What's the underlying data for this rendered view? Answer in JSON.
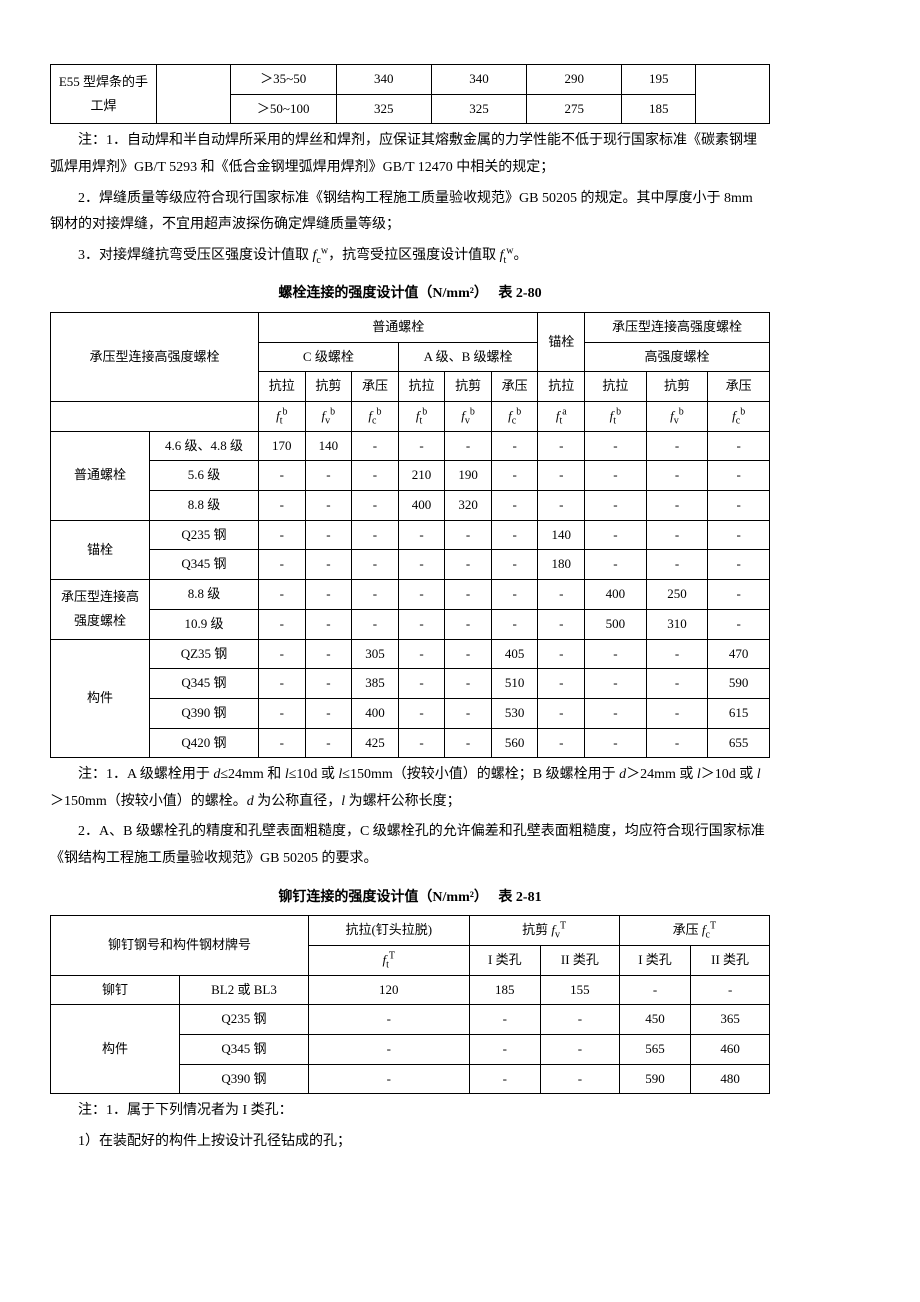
{
  "table1": {
    "left_label": "E55 型焊条的手工焊",
    "rows": [
      {
        "range": "＞35~50",
        "c1": "340",
        "c2": "340",
        "c3": "290",
        "c4": "195"
      },
      {
        "range": "＞50~100",
        "c1": "325",
        "c2": "325",
        "c3": "275",
        "c4": "185"
      }
    ]
  },
  "notes1": [
    "注：1．自动焊和半自动焊所采用的焊丝和焊剂，应保证其熔敷金属的力学性能不低于现行国家标准《碳素钢埋弧焊用焊剂》GB/T 5293 和《低合金钢埋弧焊用焊剂》GB/T 12470 中相关的规定；",
    "2．焊缝质量等级应符合现行国家标准《钢结构工程施工质量验收规范》GB 50205 的规定。其中厚度小于 8mm 钢材的对接焊缝，不宜用超声波探伤确定焊缝质量等级；",
    "3．对接焊缝抗弯受压区强度设计值取 fcw，抗弯受拉区强度设计值取 ftw。"
  ],
  "title2": "螺栓连接的强度设计值（N/mm²）　 表 2-80",
  "table2": {
    "header": {
      "rowspan_label": "承压型连接高强度螺栓",
      "group_normal": "普通螺栓",
      "group_c": "C 级螺栓",
      "group_ab": "A 级、B 级螺栓",
      "anchor": "锚栓",
      "hs": "承压型连接高强度螺栓",
      "sub_labels": [
        "抗拉",
        "抗剪",
        "承压",
        "抗拉",
        "抗剪",
        "承压",
        "抗拉",
        "抗拉",
        "抗剪",
        "承压"
      ]
    },
    "rows": [
      {
        "g": "普通螺栓",
        "gspan": 3,
        "l": "4.6 级、4.8 级",
        "v": [
          "170",
          "140",
          "-",
          "-",
          "-",
          "-",
          "-",
          "-",
          "-",
          "-"
        ]
      },
      {
        "l": "5.6 级",
        "v": [
          "-",
          "-",
          "-",
          "210",
          "190",
          "-",
          "-",
          "-",
          "-",
          "-"
        ]
      },
      {
        "l": "8.8 级",
        "v": [
          "-",
          "-",
          "-",
          "400",
          "320",
          "-",
          "-",
          "-",
          "-",
          "-"
        ]
      },
      {
        "g": "锚栓",
        "gspan": 2,
        "l": "Q235 钢",
        "v": [
          "-",
          "-",
          "-",
          "-",
          "-",
          "-",
          "140",
          "-",
          "-",
          "-"
        ]
      },
      {
        "l": "Q345 钢",
        "v": [
          "-",
          "-",
          "-",
          "-",
          "-",
          "-",
          "180",
          "-",
          "-",
          "-"
        ]
      },
      {
        "g": "承压型连接高强度螺栓",
        "gspan": 2,
        "l": "8.8 级",
        "v": [
          "-",
          "-",
          "-",
          "-",
          "-",
          "-",
          "-",
          "400",
          "250",
          "-"
        ]
      },
      {
        "l": "10.9 级",
        "v": [
          "-",
          "-",
          "-",
          "-",
          "-",
          "-",
          "-",
          "500",
          "310",
          "-"
        ]
      },
      {
        "g": "构件",
        "gspan": 4,
        "l": "QZ35 钢",
        "v": [
          "-",
          "-",
          "305",
          "-",
          "-",
          "405",
          "-",
          "-",
          "-",
          "470"
        ]
      },
      {
        "l": "Q345 钢",
        "v": [
          "-",
          "-",
          "385",
          "-",
          "-",
          "510",
          "-",
          "-",
          "-",
          "590"
        ]
      },
      {
        "l": "Q390 钢",
        "v": [
          "-",
          "-",
          "400",
          "-",
          "-",
          "530",
          "-",
          "-",
          "-",
          "615"
        ]
      },
      {
        "l": "Q420 钢",
        "v": [
          "-",
          "-",
          "425",
          "-",
          "-",
          "560",
          "-",
          "-",
          "-",
          "655"
        ]
      }
    ]
  },
  "notes2": [
    "注：1．A 级螺栓用于 d≤24mm 和 l≤10d 或 l≤150mm（按较小值）的螺栓；B 级螺栓用于 d＞24mm 或 l＞10d 或 l＞150mm（按较小值）的螺栓。d 为公称直径，l 为螺杆公称长度；",
    "2．A、B 级螺栓孔的精度和孔壁表面粗糙度，C 级螺栓孔的允许偏差和孔壁表面粗糙度，均应符合现行国家标准《钢结构工程施工质量验收规范》GB 50205 的要求。"
  ],
  "title3": "铆钉连接的强度设计值（N/mm²）　 表 2-81",
  "table3": {
    "header": {
      "col1": "铆钉钢号和构件钢材牌号",
      "col2": "抗拉(钉头拉脱)",
      "shear": "抗剪 fvT",
      "bear": "承压 fcT",
      "class1": "I 类孔",
      "class2": "II 类孔"
    },
    "rows": [
      {
        "g": "铆钉",
        "gspan": 1,
        "l": "BL2 或 BL3",
        "v": [
          "120",
          "185",
          "155",
          "-",
          "-"
        ]
      },
      {
        "g": "构件",
        "gspan": 3,
        "l": "Q235 钢",
        "v": [
          "-",
          "-",
          "-",
          "450",
          "365"
        ]
      },
      {
        "l": "Q345 钢",
        "v": [
          "-",
          "-",
          "-",
          "565",
          "460"
        ]
      },
      {
        "l": "Q390 钢",
        "v": [
          "-",
          "-",
          "-",
          "590",
          "480"
        ]
      }
    ]
  },
  "notes3": [
    "注：1．属于下列情况者为 I 类孔：",
    "1）在装配好的构件上按设计孔径钻成的孔；"
  ]
}
